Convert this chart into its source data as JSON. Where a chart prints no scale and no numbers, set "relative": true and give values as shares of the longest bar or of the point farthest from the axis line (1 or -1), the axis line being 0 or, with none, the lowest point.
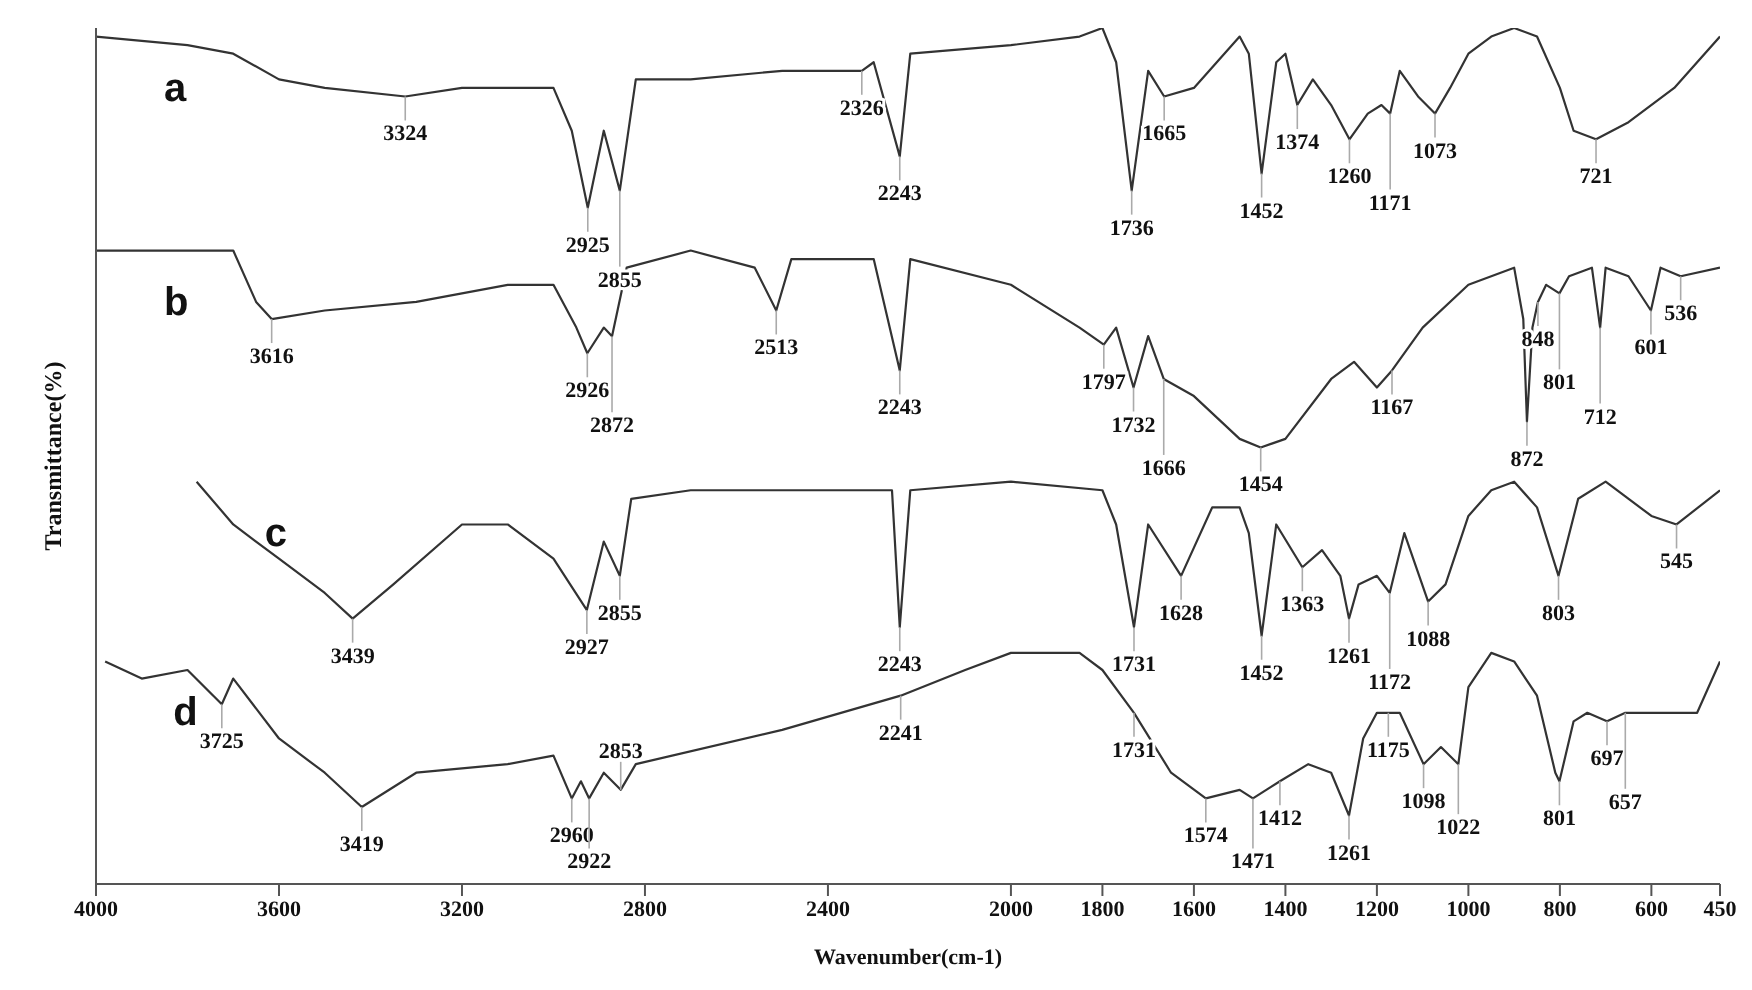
{
  "chart_data": {
    "type": "line",
    "relative": true,
    "xlabel": "Wavenumber(cm-1)",
    "ylabel": "Transmittance(%)",
    "xlim": [
      4000,
      450
    ],
    "xticks": [
      4000,
      3600,
      3200,
      2800,
      2400,
      2000,
      1800,
      1600,
      1400,
      1200,
      1000,
      800,
      600,
      450
    ],
    "grid": false,
    "legend": false,
    "marker": "none",
    "line_style": "solid",
    "series": [
      {
        "name": "a",
        "color": "#333333",
        "x": [
          4000,
          3800,
          3700,
          3600,
          3500,
          3324,
          3200,
          3000,
          2960,
          2925,
          2890,
          2855,
          2820,
          2700,
          2500,
          2400,
          2326,
          2300,
          2243,
          2220,
          2000,
          1850,
          1800,
          1770,
          1736,
          1700,
          1665,
          1600,
          1550,
          1500,
          1480,
          1452,
          1420,
          1400,
          1374,
          1340,
          1300,
          1260,
          1220,
          1190,
          1171,
          1150,
          1110,
          1073,
          1040,
          1000,
          950,
          900,
          850,
          800,
          770,
          721,
          650,
          550,
          450
        ],
        "values": [
          0.99,
          0.98,
          0.97,
          0.94,
          0.93,
          0.92,
          0.93,
          0.93,
          0.88,
          0.79,
          0.88,
          0.81,
          0.94,
          0.94,
          0.95,
          0.95,
          0.95,
          0.96,
          0.85,
          0.97,
          0.98,
          0.99,
          1,
          0.96,
          0.81,
          0.95,
          0.92,
          0.93,
          0.96,
          0.99,
          0.97,
          0.83,
          0.96,
          0.97,
          0.91,
          0.94,
          0.91,
          0.87,
          0.9,
          0.91,
          0.9,
          0.95,
          0.92,
          0.9,
          0.93,
          0.97,
          0.99,
          1,
          0.99,
          0.93,
          0.88,
          0.87,
          0.89,
          0.93,
          0.99
        ]
      },
      {
        "name": "b",
        "color": "#333333",
        "x": [
          4000,
          3700,
          3650,
          3616,
          3500,
          3300,
          3100,
          3000,
          2950,
          2926,
          2890,
          2872,
          2840,
          2700,
          2560,
          2513,
          2480,
          2300,
          2243,
          2220,
          2000,
          1850,
          1797,
          1770,
          1732,
          1700,
          1666,
          1600,
          1500,
          1454,
          1400,
          1300,
          1250,
          1200,
          1167,
          1100,
          1000,
          900,
          880,
          872,
          860,
          848,
          830,
          801,
          780,
          730,
          712,
          700,
          650,
          601,
          580,
          536,
          450
        ],
        "values": [
          0.74,
          0.74,
          0.68,
          0.66,
          0.67,
          0.68,
          0.7,
          0.7,
          0.65,
          0.62,
          0.65,
          0.64,
          0.72,
          0.74,
          0.72,
          0.67,
          0.73,
          0.73,
          0.6,
          0.73,
          0.7,
          0.65,
          0.63,
          0.65,
          0.58,
          0.64,
          0.59,
          0.57,
          0.52,
          0.51,
          0.52,
          0.59,
          0.61,
          0.58,
          0.6,
          0.65,
          0.7,
          0.72,
          0.66,
          0.54,
          0.65,
          0.68,
          0.7,
          0.69,
          0.71,
          0.72,
          0.65,
          0.72,
          0.71,
          0.67,
          0.72,
          0.71,
          0.72
        ]
      },
      {
        "name": "c",
        "color": "#333333",
        "x": [
          3780,
          3700,
          3600,
          3500,
          3439,
          3350,
          3200,
          3100,
          3000,
          2927,
          2890,
          2855,
          2830,
          2700,
          2400,
          2260,
          2243,
          2220,
          2000,
          1800,
          1770,
          1731,
          1700,
          1628,
          1560,
          1500,
          1480,
          1452,
          1420,
          1363,
          1320,
          1280,
          1261,
          1240,
          1200,
          1172,
          1140,
          1088,
          1050,
          1000,
          950,
          900,
          850,
          803,
          760,
          700,
          600,
          545,
          450
        ],
        "values": [
          0.47,
          0.42,
          0.38,
          0.34,
          0.31,
          0.35,
          0.42,
          0.42,
          0.38,
          0.32,
          0.4,
          0.36,
          0.45,
          0.46,
          0.46,
          0.46,
          0.3,
          0.46,
          0.47,
          0.46,
          0.42,
          0.3,
          0.42,
          0.36,
          0.44,
          0.44,
          0.41,
          0.29,
          0.42,
          0.37,
          0.39,
          0.36,
          0.31,
          0.35,
          0.36,
          0.34,
          0.41,
          0.33,
          0.35,
          0.43,
          0.46,
          0.47,
          0.44,
          0.36,
          0.45,
          0.47,
          0.43,
          0.42,
          0.46
        ]
      },
      {
        "name": "d",
        "color": "#333333",
        "x": [
          3980,
          3900,
          3800,
          3725,
          3700,
          3600,
          3500,
          3419,
          3300,
          3100,
          3000,
          2960,
          2940,
          2922,
          2890,
          2853,
          2820,
          2500,
          2241,
          2100,
          2000,
          1850,
          1800,
          1731,
          1650,
          1574,
          1500,
          1471,
          1412,
          1350,
          1300,
          1261,
          1230,
          1200,
          1175,
          1150,
          1098,
          1060,
          1022,
          1000,
          950,
          900,
          850,
          810,
          801,
          770,
          740,
          697,
          657,
          600,
          500,
          450
        ],
        "values": [
          0.26,
          0.24,
          0.25,
          0.21,
          0.24,
          0.17,
          0.13,
          0.09,
          0.13,
          0.14,
          0.15,
          0.1,
          0.12,
          0.1,
          0.13,
          0.11,
          0.14,
          0.18,
          0.22,
          0.25,
          0.27,
          0.27,
          0.25,
          0.2,
          0.13,
          0.1,
          0.11,
          0.1,
          0.12,
          0.14,
          0.13,
          0.08,
          0.17,
          0.2,
          0.2,
          0.2,
          0.14,
          0.16,
          0.14,
          0.23,
          0.27,
          0.26,
          0.22,
          0.13,
          0.12,
          0.19,
          0.2,
          0.19,
          0.2,
          0.2,
          0.2,
          0.26
        ]
      }
    ],
    "annotations": [
      {
        "text": "3324",
        "x": 3324,
        "y": 0.92
      },
      {
        "text": "2925",
        "x": 2925,
        "y": 0.79
      },
      {
        "text": "2855",
        "x": 2855,
        "y": 0.81
      },
      {
        "text": "2326",
        "x": 2326,
        "y": 0.95
      },
      {
        "text": "2243",
        "x": 2243,
        "y": 0.85
      },
      {
        "text": "1736",
        "x": 1736,
        "y": 0.81
      },
      {
        "text": "1665",
        "x": 1665,
        "y": 0.92
      },
      {
        "text": "1452",
        "x": 1452,
        "y": 0.83
      },
      {
        "text": "1374",
        "x": 1374,
        "y": 0.91
      },
      {
        "text": "1260",
        "x": 1260,
        "y": 0.87
      },
      {
        "text": "1171",
        "x": 1171,
        "y": 0.9
      },
      {
        "text": "1073",
        "x": 1073,
        "y": 0.9
      },
      {
        "text": "721",
        "x": 721,
        "y": 0.87
      },
      {
        "text": "3616",
        "x": 3616,
        "y": 0.66
      },
      {
        "text": "2926",
        "x": 2926,
        "y": 0.62
      },
      {
        "text": "2872",
        "x": 2872,
        "y": 0.64
      },
      {
        "text": "2513",
        "x": 2513,
        "y": 0.67
      },
      {
        "text": "2243",
        "x": 2243,
        "y": 0.6
      },
      {
        "text": "1797",
        "x": 1797,
        "y": 0.63
      },
      {
        "text": "1732",
        "x": 1732,
        "y": 0.58
      },
      {
        "text": "1666",
        "x": 1666,
        "y": 0.59
      },
      {
        "text": "1454",
        "x": 1454,
        "y": 0.51
      },
      {
        "text": "1167",
        "x": 1167,
        "y": 0.6
      },
      {
        "text": "872",
        "x": 872,
        "y": 0.54
      },
      {
        "text": "848",
        "x": 848,
        "y": 0.68
      },
      {
        "text": "801",
        "x": 801,
        "y": 0.69
      },
      {
        "text": "712",
        "x": 712,
        "y": 0.65
      },
      {
        "text": "601",
        "x": 601,
        "y": 0.67
      },
      {
        "text": "536",
        "x": 536,
        "y": 0.71
      },
      {
        "text": "3439",
        "x": 3439,
        "y": 0.31
      },
      {
        "text": "2927",
        "x": 2927,
        "y": 0.32
      },
      {
        "text": "2855",
        "x": 2855,
        "y": 0.36
      },
      {
        "text": "2243",
        "x": 2243,
        "y": 0.3
      },
      {
        "text": "1731",
        "x": 1731,
        "y": 0.3
      },
      {
        "text": "1628",
        "x": 1628,
        "y": 0.36
      },
      {
        "text": "1452",
        "x": 1452,
        "y": 0.29
      },
      {
        "text": "1363",
        "x": 1363,
        "y": 0.37
      },
      {
        "text": "1261",
        "x": 1261,
        "y": 0.31
      },
      {
        "text": "1172",
        "x": 1172,
        "y": 0.34
      },
      {
        "text": "1088",
        "x": 1088,
        "y": 0.33
      },
      {
        "text": "803",
        "x": 803,
        "y": 0.36
      },
      {
        "text": "545",
        "x": 545,
        "y": 0.42
      },
      {
        "text": "3725",
        "x": 3725,
        "y": 0.21
      },
      {
        "text": "3419",
        "x": 3419,
        "y": 0.09
      },
      {
        "text": "2960",
        "x": 2960,
        "y": 0.1
      },
      {
        "text": "2922",
        "x": 2922,
        "y": 0.1
      },
      {
        "text": "2853",
        "x": 2853,
        "y": 0.11
      },
      {
        "text": "2241",
        "x": 2241,
        "y": 0.22
      },
      {
        "text": "1731",
        "x": 1731,
        "y": 0.2
      },
      {
        "text": "1574",
        "x": 1574,
        "y": 0.1
      },
      {
        "text": "1471",
        "x": 1471,
        "y": 0.1
      },
      {
        "text": "1412",
        "x": 1412,
        "y": 0.12
      },
      {
        "text": "1261",
        "x": 1261,
        "y": 0.08
      },
      {
        "text": "1175",
        "x": 1175,
        "y": 0.2
      },
      {
        "text": "1098",
        "x": 1098,
        "y": 0.14
      },
      {
        "text": "1022",
        "x": 1022,
        "y": 0.14
      },
      {
        "text": "801",
        "x": 801,
        "y": 0.12
      },
      {
        "text": "697",
        "x": 697,
        "y": 0.19
      },
      {
        "text": "657",
        "x": 657,
        "y": 0.2
      }
    ]
  }
}
